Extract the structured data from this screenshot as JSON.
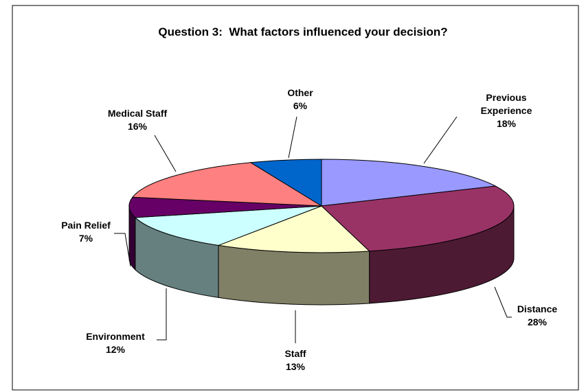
{
  "chart_data": {
    "type": "pie",
    "title": "Question 3:  What factors influenced your decision?",
    "categories": [
      "Previous Experience",
      "Distance",
      "Staff",
      "Environment",
      "Pain Relief",
      "Medical Staff",
      "Other"
    ],
    "values": [
      18,
      28,
      13,
      12,
      7,
      16,
      6
    ],
    "value_labels": [
      "18%",
      "28%",
      "13%",
      "12%",
      "7%",
      "16%",
      "6%"
    ],
    "colors": [
      "#9999ff",
      "#993366",
      "#ffffcc",
      "#ccffff",
      "#660066",
      "#ff8080",
      "#0066cc"
    ]
  }
}
